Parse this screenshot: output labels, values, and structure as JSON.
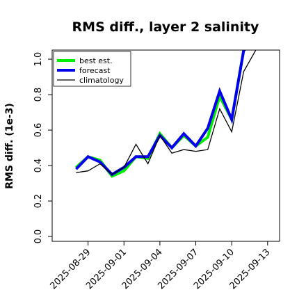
{
  "chart_data": {
    "type": "line",
    "title": "RMS diff., layer 2 salinity",
    "ylabel": "RMS diff. (1e-3)",
    "xlabel": "",
    "ylim": [
      0.0,
      1.02
    ],
    "y_ticks": [
      0.0,
      0.2,
      0.4,
      0.6,
      0.8,
      1.0
    ],
    "y_tick_labels": [
      "0.0",
      "0.2",
      "0.4",
      "0.6",
      "0.8",
      "1.0"
    ],
    "x_range": [
      "2025-08-26",
      "2025-09-14"
    ],
    "x_ticks": [
      "2025-08-29",
      "2025-09-01",
      "2025-09-04",
      "2025-09-07",
      "2025-09-10",
      "2025-09-13"
    ],
    "highlight_tick": "2025-09-04",
    "highlight_color": "#008000",
    "legend_position": "upper left",
    "grid": false,
    "series": [
      {
        "name": "best est.",
        "color": "#00ee00",
        "x": [
          "2025-08-28",
          "2025-08-29",
          "2025-08-30",
          "2025-08-31",
          "2025-09-01",
          "2025-09-02",
          "2025-09-03",
          "2025-09-04",
          "2025-09-05",
          "2025-09-06",
          "2025-09-07",
          "2025-09-08",
          "2025-09-09",
          "2025-09-10",
          "2025-09-11",
          "2025-09-12"
        ],
        "y": [
          0.39,
          0.45,
          0.43,
          0.34,
          0.37,
          0.45,
          0.44,
          0.58,
          0.5,
          0.57,
          0.51,
          0.56,
          0.79,
          0.66,
          1.05,
          1.1
        ]
      },
      {
        "name": "forecast",
        "color": "#0000ee",
        "x": [
          "2025-08-28",
          "2025-08-29",
          "2025-08-30",
          "2025-08-31",
          "2025-09-01",
          "2025-09-02",
          "2025-09-03",
          "2025-09-04",
          "2025-09-05",
          "2025-09-06",
          "2025-09-07",
          "2025-09-08",
          "2025-09-09",
          "2025-09-10",
          "2025-09-11",
          "2025-09-12"
        ],
        "y": [
          0.38,
          0.45,
          0.42,
          0.35,
          0.39,
          0.45,
          0.45,
          0.57,
          0.5,
          0.58,
          0.51,
          0.61,
          0.82,
          0.66,
          1.05,
          1.1
        ]
      },
      {
        "name": "climatology",
        "color": "#000000",
        "x": [
          "2025-08-28",
          "2025-08-29",
          "2025-08-30",
          "2025-08-31",
          "2025-09-01",
          "2025-09-02",
          "2025-09-03",
          "2025-09-04",
          "2025-09-05",
          "2025-09-06",
          "2025-09-07",
          "2025-09-08",
          "2025-09-09",
          "2025-09-10",
          "2025-09-11",
          "2025-09-12"
        ],
        "y": [
          0.36,
          0.37,
          0.41,
          0.35,
          0.39,
          0.52,
          0.41,
          0.57,
          0.47,
          0.49,
          0.48,
          0.49,
          0.72,
          0.59,
          0.93,
          1.05
        ]
      }
    ]
  }
}
